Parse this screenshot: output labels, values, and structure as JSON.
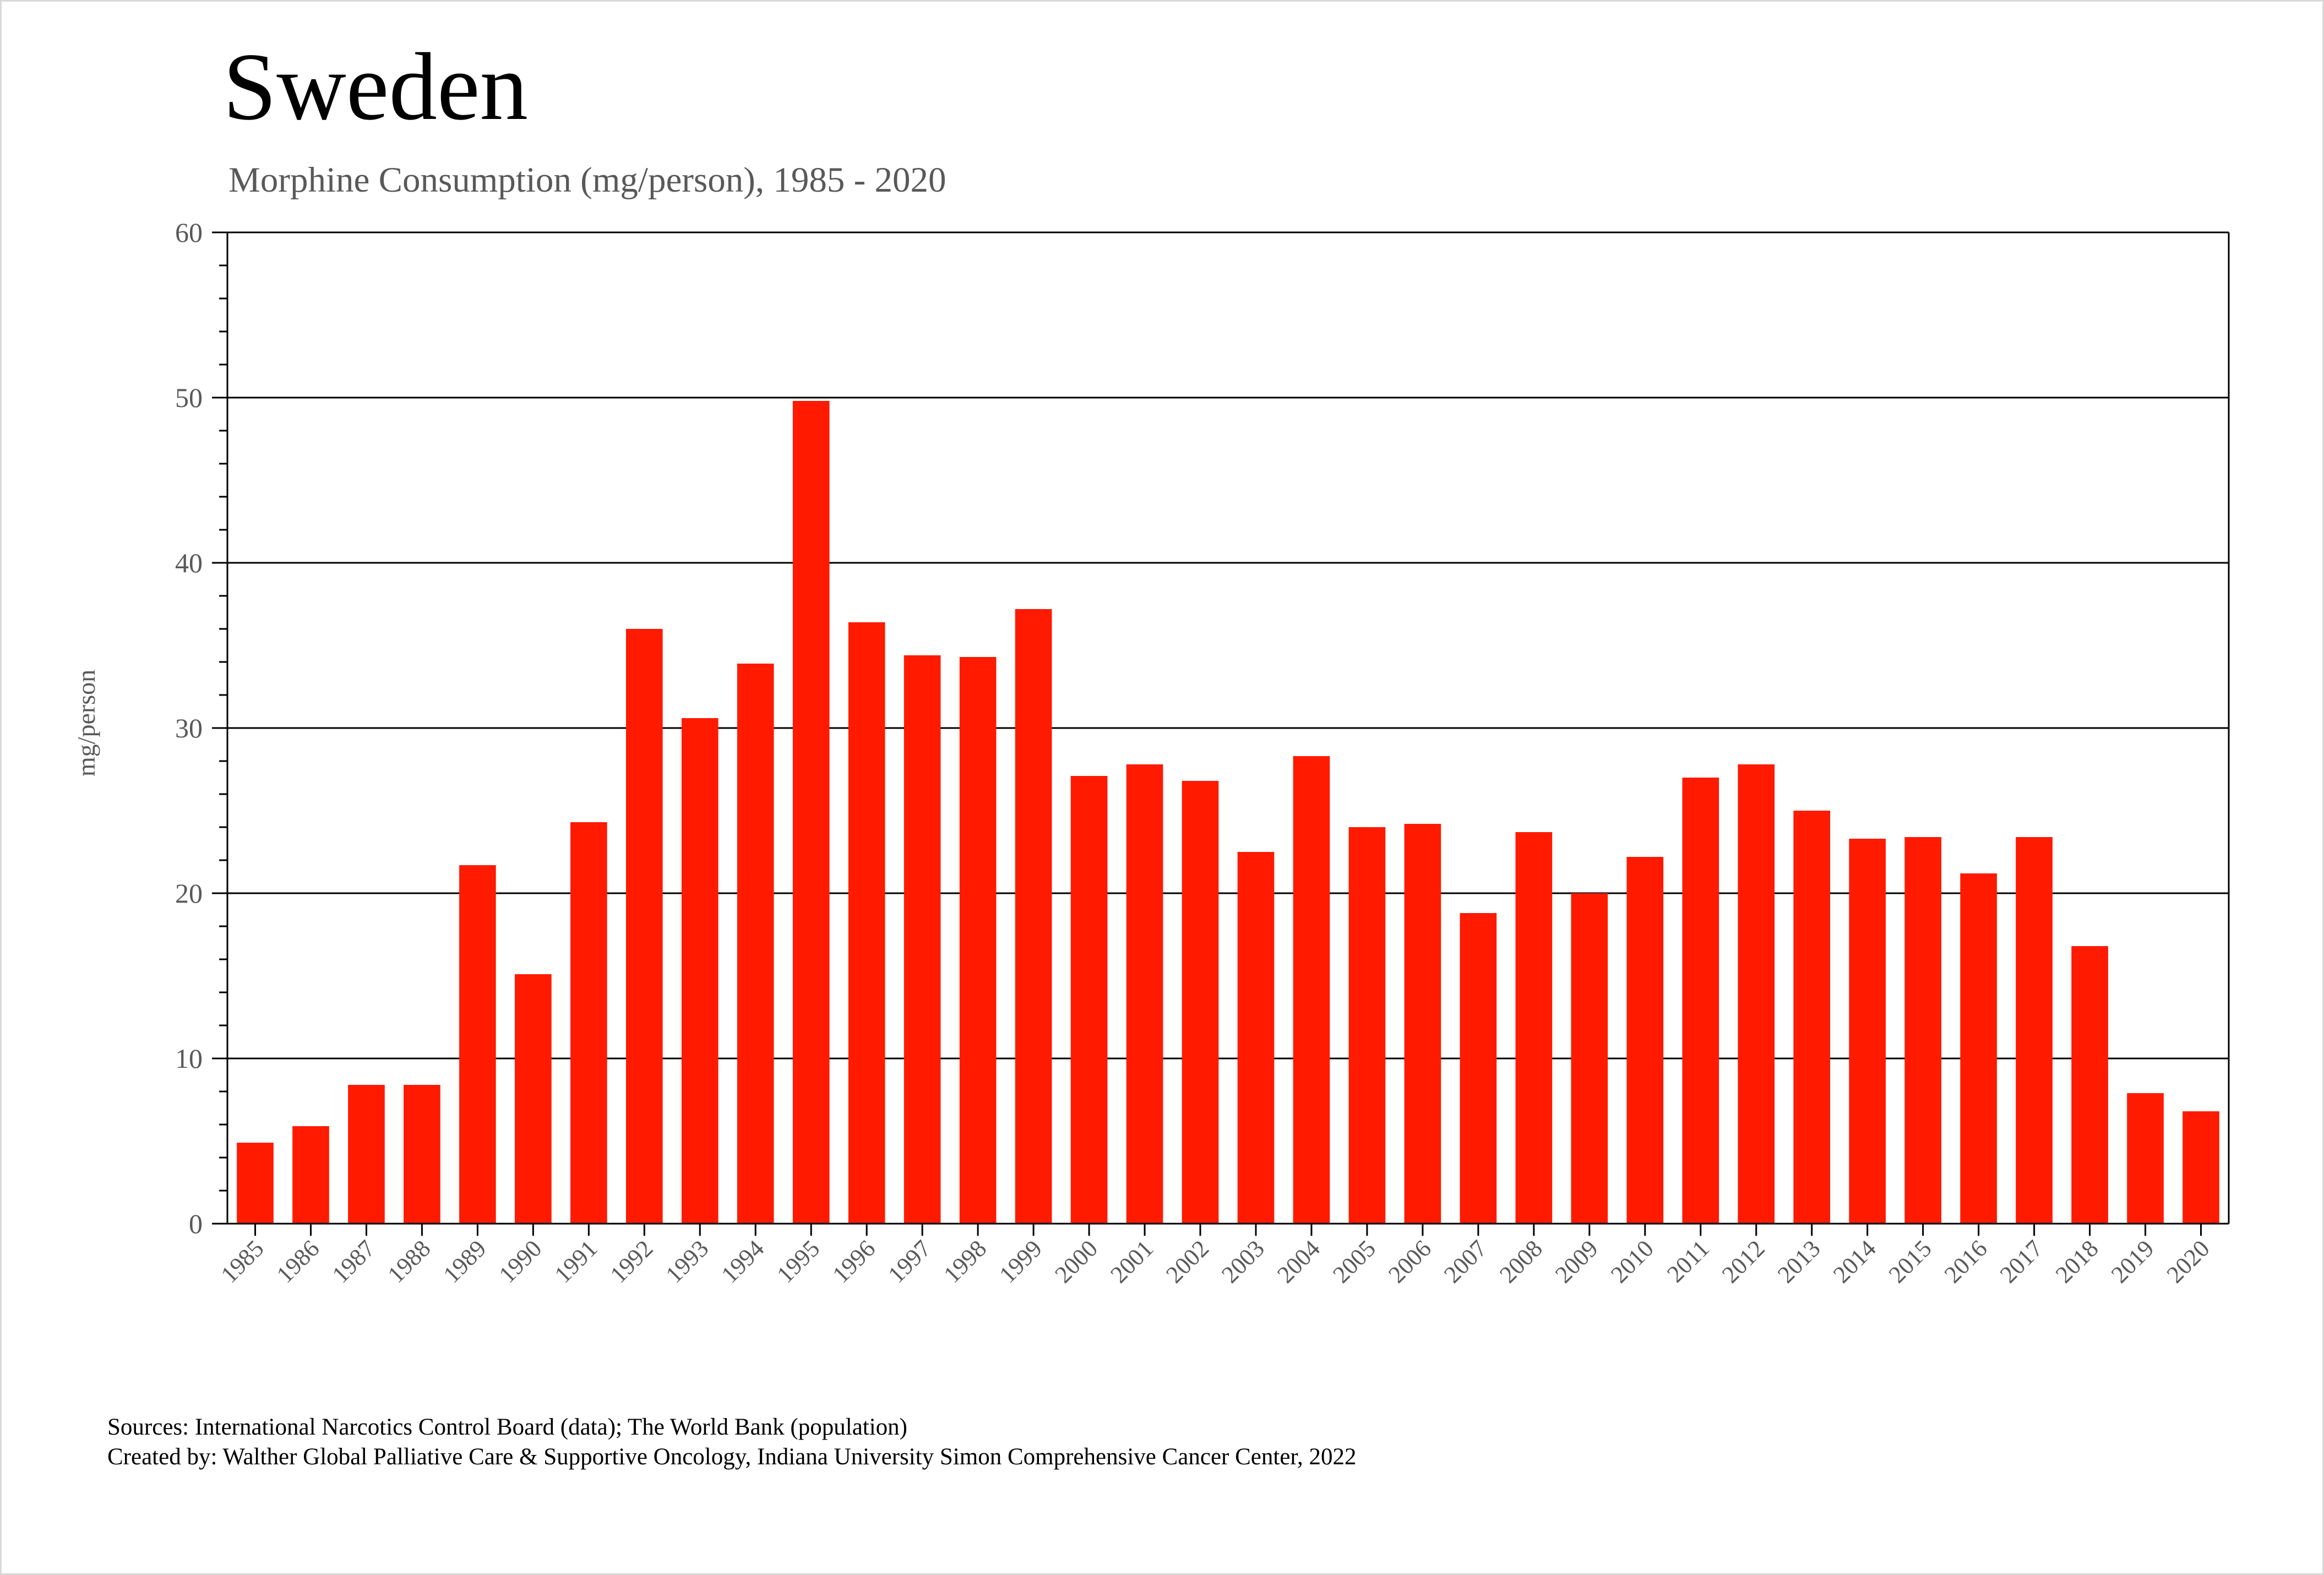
{
  "chart_data": {
    "type": "bar",
    "title": "Sweden",
    "subtitle": "Morphine Consumption (mg/person), 1985 - 2020",
    "xlabel": "",
    "ylabel": "mg/person",
    "ylim": [
      0,
      60
    ],
    "yticks": [
      0,
      10,
      20,
      30,
      40,
      50,
      60
    ],
    "grid": true,
    "bar_color": "#ff1a00",
    "categories": [
      "1985",
      "1986",
      "1987",
      "1988",
      "1989",
      "1990",
      "1991",
      "1992",
      "1993",
      "1994",
      "1995",
      "1996",
      "1997",
      "1998",
      "1999",
      "2000",
      "2001",
      "2002",
      "2003",
      "2004",
      "2005",
      "2006",
      "2007",
      "2008",
      "2009",
      "2010",
      "2011",
      "2012",
      "2013",
      "2014",
      "2015",
      "2016",
      "2017",
      "2018",
      "2019",
      "2020"
    ],
    "values": [
      4.9,
      5.9,
      8.4,
      8.4,
      21.7,
      15.1,
      24.3,
      36.0,
      30.6,
      33.9,
      49.8,
      36.4,
      34.4,
      34.3,
      37.2,
      27.1,
      27.8,
      26.8,
      22.5,
      28.3,
      24.0,
      24.2,
      18.8,
      23.7,
      20.0,
      22.2,
      27.0,
      27.8,
      25.0,
      23.3,
      23.4,
      21.2,
      23.4,
      16.8,
      7.9,
      6.8
    ]
  },
  "footer": {
    "sources": "Sources: International Narcotics Control Board (data); The World Bank (population)",
    "created_by": "Created by: Walther  Global Palliative Care & Supportive Oncology, Indiana University Simon Comprehensive Cancer Center, 2022"
  }
}
